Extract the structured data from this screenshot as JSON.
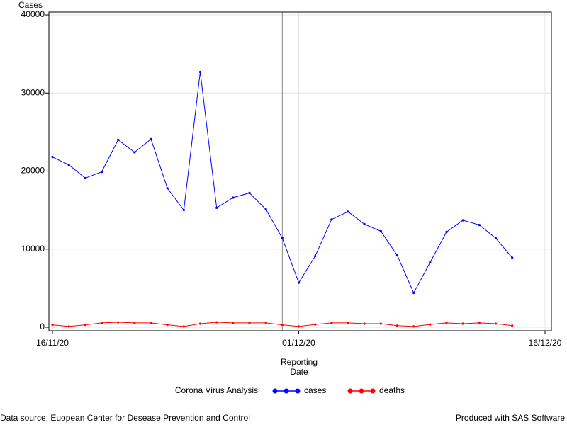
{
  "chart_data": {
    "type": "line",
    "y_label": "Cases",
    "x_label": "Reporting Date",
    "legend_title": "Corona Virus Analysis",
    "x": [
      "16/11/20",
      "17/11/20",
      "18/11/20",
      "19/11/20",
      "20/11/20",
      "21/11/20",
      "22/11/20",
      "23/11/20",
      "24/11/20",
      "25/11/20",
      "26/11/20",
      "27/11/20",
      "28/11/20",
      "29/11/20",
      "30/11/20",
      "01/12/20",
      "02/12/20",
      "03/12/20",
      "04/12/20",
      "05/12/20",
      "06/12/20",
      "07/12/20",
      "08/12/20",
      "09/12/20",
      "10/12/20",
      "11/12/20",
      "12/12/20",
      "13/12/20",
      "14/12/20"
    ],
    "series": [
      {
        "name": "cases",
        "color": "#0000ff",
        "values": [
          21800,
          20800,
          19100,
          19900,
          24000,
          22400,
          24100,
          17800,
          15000,
          32700,
          15300,
          16600,
          17200,
          15100,
          11400,
          5700,
          9100,
          13800,
          14800,
          13200,
          12300,
          9200,
          4400,
          8300,
          12200,
          13700,
          13100,
          11400,
          8900
        ]
      },
      {
        "name": "deaths",
        "color": "#ff0000",
        "values": [
          300,
          100,
          300,
          550,
          630,
          550,
          550,
          300,
          100,
          450,
          630,
          550,
          550,
          550,
          300,
          100,
          350,
          550,
          550,
          450,
          450,
          200,
          100,
          350,
          550,
          450,
          550,
          450,
          200
        ]
      }
    ],
    "xlim": [
      "16/11/20",
      "16/12/20"
    ],
    "xticks": [
      "16/11/20",
      "01/12/20",
      "16/12/20"
    ],
    "ylim": [
      -455,
      40365
    ],
    "yticks": [
      0,
      10000,
      20000,
      30000,
      40000
    ],
    "reference_line_x": "30/11/20",
    "grid": true,
    "footnote_left": "Data source: Euopean Center for Desease Prevention and Control",
    "footnote_right": "Produced with SAS Software"
  }
}
